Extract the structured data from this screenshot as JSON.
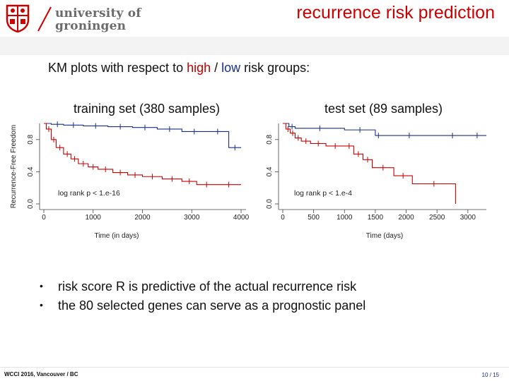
{
  "header": {
    "logo_line1": "university of",
    "logo_line2": "groningen",
    "title": "recurrence risk prediction"
  },
  "subtitle": {
    "prefix": "KM plots with respect to ",
    "high": "high",
    "sep": " / ",
    "low": "low",
    "suffix": " risk groups:"
  },
  "colors": {
    "high": "#cc0000",
    "low": "#1a2f8a",
    "accent_red": "#cc0000"
  },
  "bullets": [
    "risk score R is predictive of the actual recurrence risk",
    "the 80 selected genes can serve as a prognostic panel"
  ],
  "footer": {
    "left": "WCCI 2016, Vancouver / BC",
    "right": "10 / 15"
  },
  "chart_data": [
    {
      "type": "line",
      "title": "training set (380 samples)",
      "xlabel": "Time (in days)",
      "ylabel": "Recurrence-Free Freedom",
      "xlim": [
        0,
        4100
      ],
      "ylim": [
        0,
        1
      ],
      "xticks": [
        0,
        1000,
        2000,
        3000,
        4000
      ],
      "xtick_labels": [
        "0",
        "1000",
        "2000",
        "3000",
        "4000"
      ],
      "yticks": [
        0.0,
        0.4,
        0.8
      ],
      "ytick_labels": [
        "0.0",
        "0.4",
        "0.8"
      ],
      "annotation": "log rank p < 1.e-16",
      "series": [
        {
          "name": "low risk",
          "color": "#1a2f8a",
          "x": [
            0,
            150,
            400,
            800,
            1300,
            1800,
            2300,
            2800,
            3300,
            3750,
            4000
          ],
          "y": [
            1.0,
            0.99,
            0.98,
            0.97,
            0.96,
            0.95,
            0.93,
            0.9,
            0.9,
            0.7,
            0.7
          ]
        },
        {
          "name": "high risk",
          "color": "#cc0000",
          "x": [
            0,
            50,
            150,
            250,
            400,
            550,
            700,
            900,
            1100,
            1400,
            1700,
            2000,
            2400,
            2800,
            3100,
            3500,
            4000
          ],
          "y": [
            1.0,
            0.93,
            0.8,
            0.7,
            0.62,
            0.56,
            0.5,
            0.46,
            0.43,
            0.39,
            0.36,
            0.34,
            0.31,
            0.28,
            0.24,
            0.24,
            0.24
          ]
        }
      ]
    },
    {
      "type": "line",
      "title": "test set (89 samples)",
      "xlabel": "Time (days)",
      "ylabel": "",
      "xlim": [
        0,
        3300
      ],
      "ylim": [
        0,
        1
      ],
      "xticks": [
        0,
        500,
        1000,
        1500,
        2000,
        2500,
        3000
      ],
      "xtick_labels": [
        "0",
        "500",
        "1000",
        "1500",
        "2000",
        "2500",
        "3000"
      ],
      "yticks": [
        0.0,
        0.4,
        0.8
      ],
      "ytick_labels": [
        "0.0",
        "0.4",
        "0.8"
      ],
      "annotation": "log rank p < 1.e-4",
      "series": [
        {
          "name": "low risk",
          "color": "#1a2f8a",
          "x": [
            0,
            100,
            200,
            1000,
            1500,
            1600,
            2500,
            3000,
            3300
          ],
          "y": [
            1.0,
            0.96,
            0.94,
            0.92,
            0.85,
            0.85,
            0.85,
            0.85,
            0.85
          ]
        },
        {
          "name": "high risk",
          "color": "#cc0000",
          "x": [
            0,
            50,
            120,
            200,
            300,
            450,
            700,
            1000,
            1150,
            1300,
            1450,
            1800,
            2100,
            2800
          ],
          "y": [
            1.0,
            0.93,
            0.88,
            0.82,
            0.78,
            0.75,
            0.72,
            0.72,
            0.62,
            0.55,
            0.45,
            0.35,
            0.25,
            0.0
          ]
        }
      ]
    }
  ]
}
